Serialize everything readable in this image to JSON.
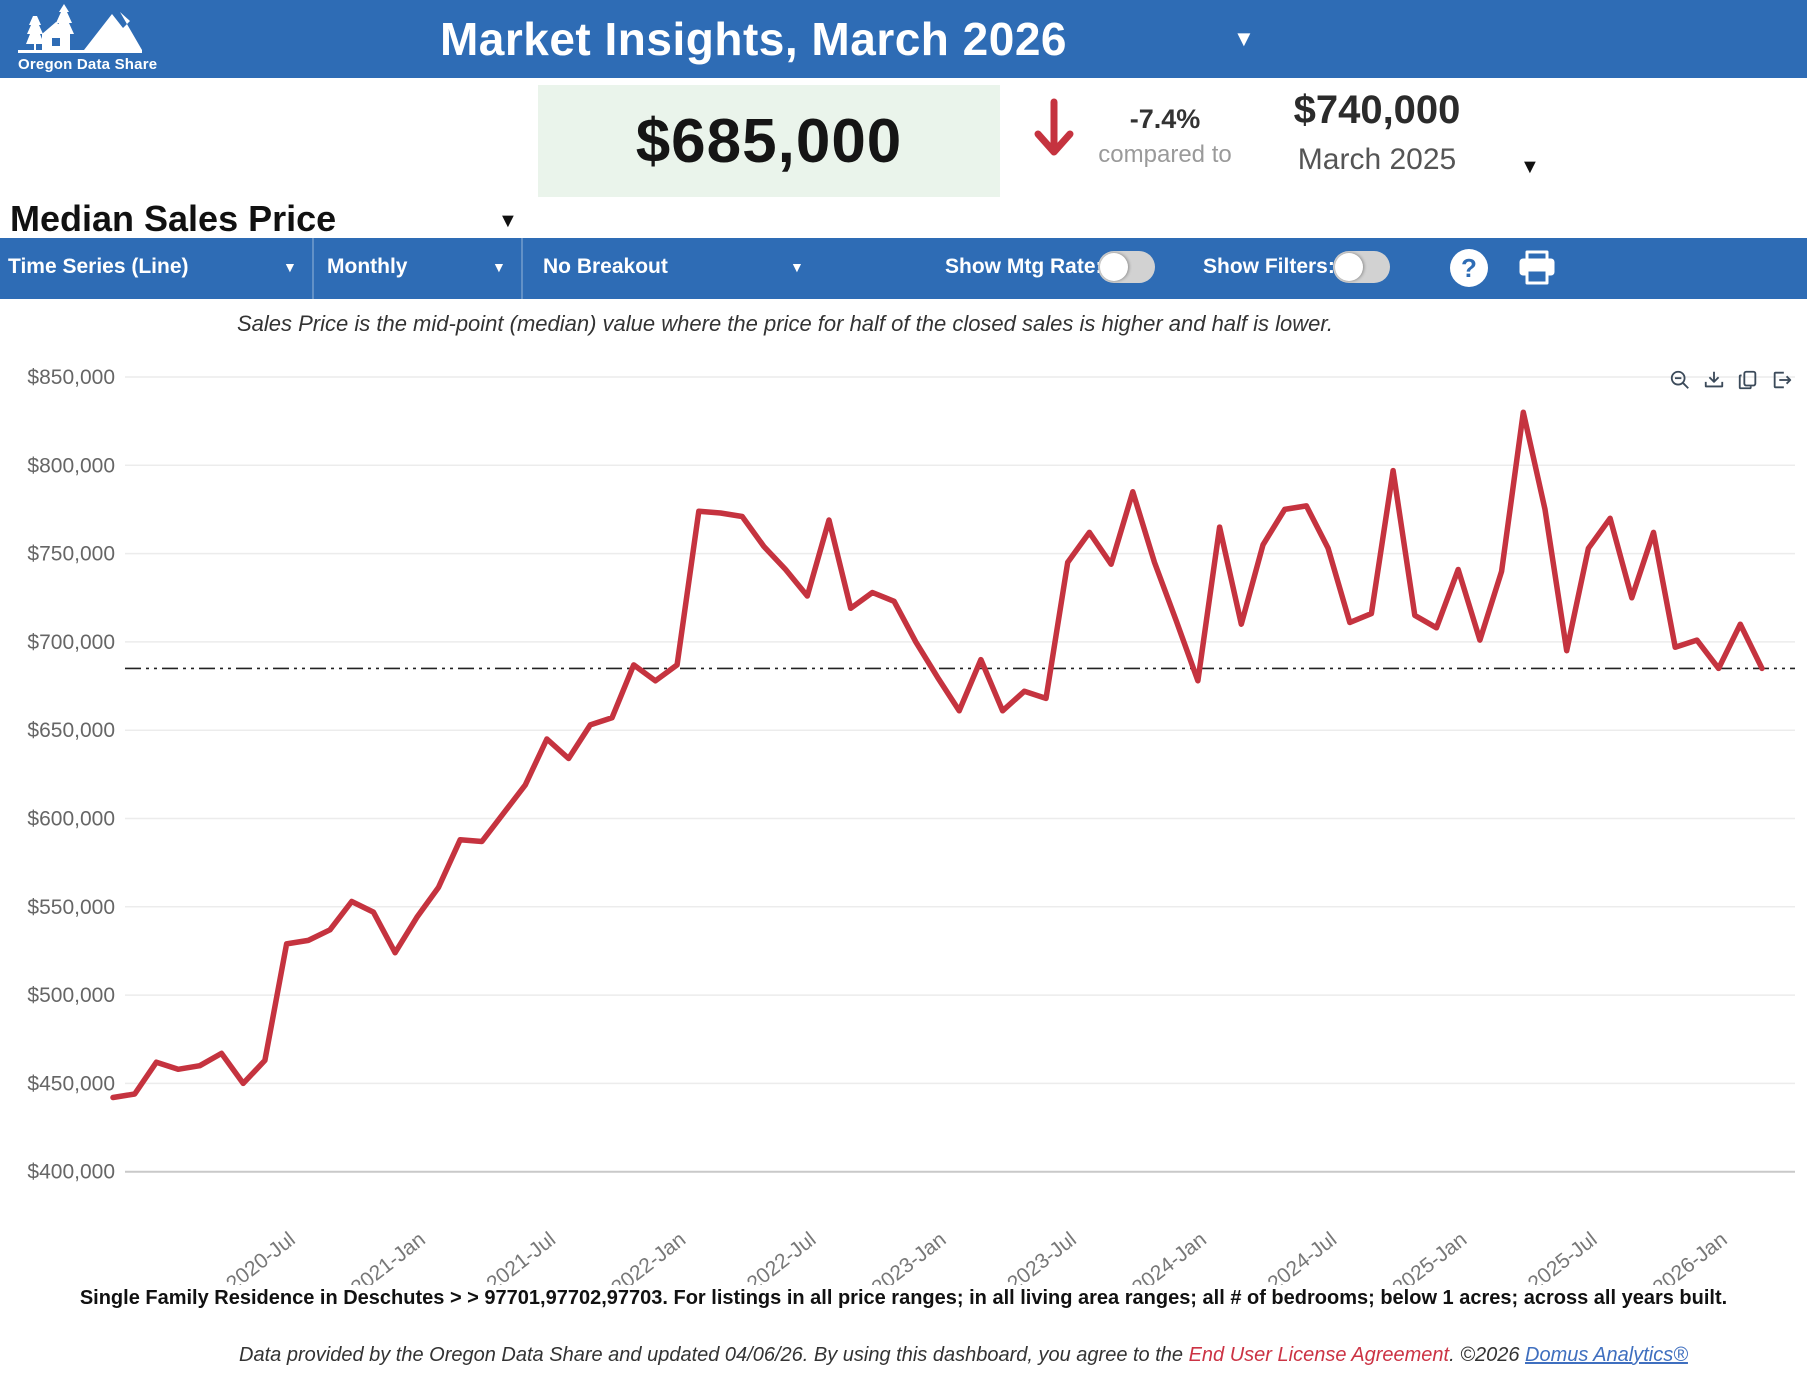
{
  "header": {
    "logo_text": "Oregon Data Share",
    "title": "Market Insights, March 2026",
    "dropdown_glyph": "▼"
  },
  "stats": {
    "metric_label": "Median Sales Price",
    "current_value": "$685,000",
    "change_pct": "-7.4%",
    "compared_label": "compared to",
    "previous_value": "$740,000",
    "previous_period": "March 2025",
    "value_box_color": "#eaf4eb",
    "trend_color": "#c5333f"
  },
  "toolbar": {
    "chart_type": "Time Series (Line)",
    "frequency": "Monthly",
    "breakout": "No Breakout",
    "mtg_rate_label": "Show Mtg Rate:",
    "mtg_rate_on": false,
    "filters_label": "Show Filters:",
    "filters_on": false,
    "help_label": "?",
    "bar_color": "#2e6cb5"
  },
  "subtitle": "Sales Price is the mid-point (median) value where the price for half of the closed sales is higher and half is lower.",
  "chart_modebar_icons": [
    "zoom-out-icon",
    "download-icon",
    "copy-icon",
    "export-icon"
  ],
  "chart_data": {
    "type": "line",
    "series_name": "Median Sales Price",
    "line_color": "#c5333f",
    "grid": true,
    "grid_color": "#ececec",
    "reference_line_value": 685000,
    "ylim": [
      400000,
      850000
    ],
    "y_tick_step": 50000,
    "y_tick_labels": [
      "$850,000",
      "$800,000",
      "$750,000",
      "$700,000",
      "$650,000",
      "$600,000",
      "$550,000",
      "$500,000",
      "$450,000",
      "$400,000"
    ],
    "x": [
      "2019-Nov",
      "2019-Dec",
      "2020-Jan",
      "2020-Feb",
      "2020-Mar",
      "2020-Apr",
      "2020-May",
      "2020-Jun",
      "2020-Jul",
      "2020-Aug",
      "2020-Sep",
      "2020-Oct",
      "2020-Nov",
      "2020-Dec",
      "2021-Jan",
      "2021-Feb",
      "2021-Mar",
      "2021-Apr",
      "2021-May",
      "2021-Jun",
      "2021-Jul",
      "2021-Aug",
      "2021-Sep",
      "2021-Oct",
      "2021-Nov",
      "2021-Dec",
      "2022-Jan",
      "2022-Feb",
      "2022-Mar",
      "2022-Apr",
      "2022-May",
      "2022-Jun",
      "2022-Jul",
      "2022-Aug",
      "2022-Sep",
      "2022-Oct",
      "2022-Nov",
      "2022-Dec",
      "2023-Jan",
      "2023-Feb",
      "2023-Mar",
      "2023-Apr",
      "2023-May",
      "2023-Jun",
      "2023-Jul",
      "2023-Aug",
      "2023-Sep",
      "2023-Oct",
      "2023-Nov",
      "2023-Dec",
      "2024-Jan",
      "2024-Feb",
      "2024-Mar",
      "2024-Apr",
      "2024-May",
      "2024-Jun",
      "2024-Jul",
      "2024-Aug",
      "2024-Sep",
      "2024-Oct",
      "2024-Nov",
      "2024-Dec",
      "2025-Jan",
      "2025-Feb",
      "2025-Mar",
      "2025-Apr",
      "2025-May",
      "2025-Jun",
      "2025-Jul",
      "2025-Aug",
      "2025-Sep",
      "2025-Oct",
      "2025-Nov",
      "2025-Dec",
      "2026-Jan",
      "2026-Feb",
      "2026-Mar"
    ],
    "values": [
      442000,
      444000,
      462000,
      458000,
      460000,
      467000,
      450000,
      463000,
      529000,
      531000,
      537000,
      553000,
      547000,
      524000,
      544000,
      561000,
      588000,
      587000,
      603000,
      619000,
      645000,
      634000,
      653000,
      657000,
      687000,
      678000,
      687000,
      774000,
      773000,
      771000,
      754000,
      741000,
      726000,
      769000,
      719000,
      728000,
      723000,
      700000,
      680000,
      661000,
      690000,
      661000,
      672000,
      668000,
      745000,
      762000,
      744000,
      785000,
      745000,
      712000,
      678000,
      765000,
      710000,
      755000,
      775000,
      777000,
      753000,
      711000,
      716000,
      797000,
      715000,
      708000,
      741000,
      701000,
      740000,
      830000,
      775000,
      695000,
      753000,
      770000,
      725000,
      762000,
      697000,
      701000,
      685000,
      710000,
      685000
    ],
    "x_tick_labels": [
      "2020-Jul",
      "2021-Jan",
      "2021-Jul",
      "2022-Jan",
      "2022-Jul",
      "2023-Jan",
      "2023-Jul",
      "2024-Jan",
      "2024-Jul",
      "2025-Jan",
      "2025-Jul",
      "2026-Jan"
    ],
    "x_tick_indices": [
      8,
      14,
      20,
      26,
      32,
      38,
      44,
      50,
      56,
      62,
      68,
      74
    ]
  },
  "footer": {
    "filters_line": "Single Family Residence in Deschutes > > 97701,97702,97703. For listings in all price ranges; in all living area ranges; all # of bedrooms; below 1 acres; across all years built.",
    "disclaimer_prefix": "Data provided by the Oregon Data Share and updated 04/06/26.  By using this dashboard, you agree to the ",
    "eula_link": "End User License Agreement",
    "disclaimer_mid": ".  ©2026 ",
    "analytics_link": "Domus Analytics®"
  }
}
